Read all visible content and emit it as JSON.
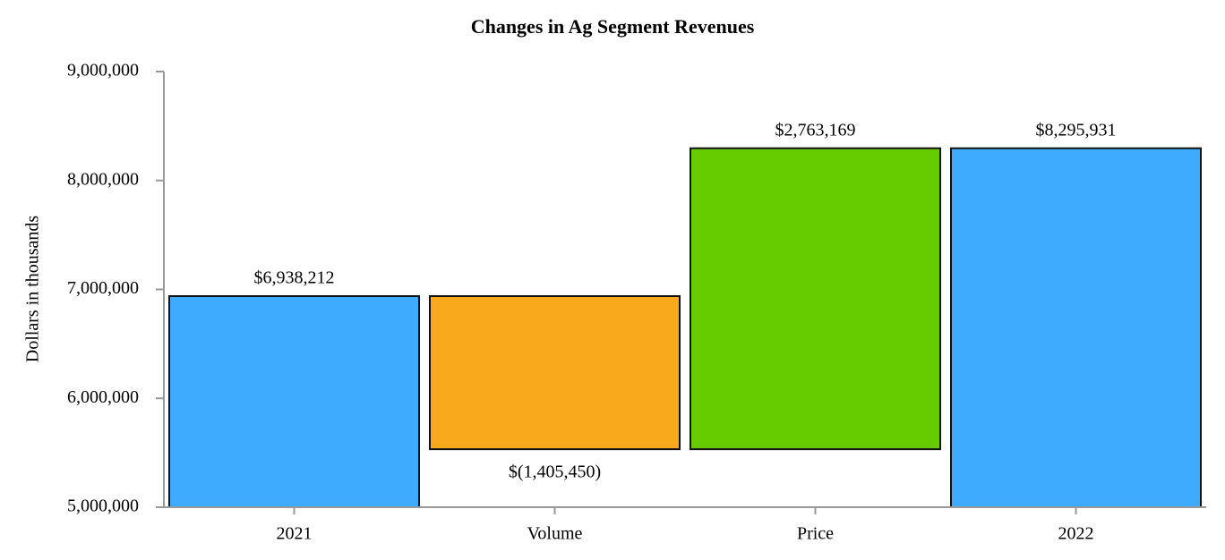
{
  "chart_data": {
    "type": "waterfall",
    "title": "Changes in Ag Segment Revenues",
    "y_label": "Dollars in thousands",
    "categories": [
      "2021",
      "Volume",
      "Price",
      "2022"
    ],
    "values": [
      6938212,
      -1405450,
      2763169,
      8295931
    ],
    "value_labels": [
      "$6,938,212",
      "$(1,405,450)",
      "$2,763,169",
      "$8,295,931"
    ],
    "totals": [
      true,
      false,
      false,
      true
    ],
    "colors": [
      "#3fabff",
      "#f8aa1c",
      "#66cc00",
      "#3fabff"
    ],
    "ylim": [
      5000000,
      9000000
    ],
    "yticks": [
      {
        "value": 5000000,
        "label": "5,000,000"
      },
      {
        "value": 6000000,
        "label": "6,000,000"
      },
      {
        "value": 7000000,
        "label": "7,000,000"
      },
      {
        "value": 8000000,
        "label": "8,000,000"
      },
      {
        "value": 9000000,
        "label": "9,000,000"
      }
    ],
    "grid": false
  }
}
